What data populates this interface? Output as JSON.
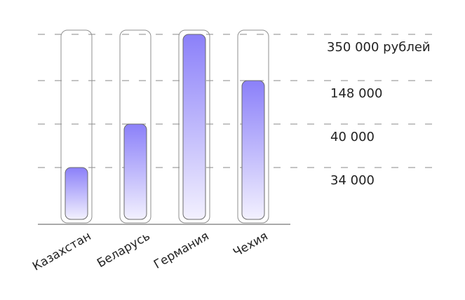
{
  "chart_data": {
    "type": "bar",
    "categories": [
      "Казахстан",
      "Беларусь",
      "Германия",
      "Чехия"
    ],
    "values": [
      34000,
      40000,
      350000,
      148000
    ],
    "y_ticks": [
      {
        "value": 350000,
        "label": "350 000 рублей"
      },
      {
        "value": 148000,
        "label": "148 000"
      },
      {
        "value": 40000,
        "label": "40 000"
      },
      {
        "value": 34000,
        "label": "34 000"
      }
    ],
    "scale": "ordinal",
    "title": "",
    "xlabel": "",
    "ylabel": "",
    "grid": true,
    "colors": {
      "bar_top": "#8b80f9",
      "bar_bottom": "#f3f1fe",
      "track": "#8f8f8f",
      "grid": "#8a8a8a"
    }
  }
}
